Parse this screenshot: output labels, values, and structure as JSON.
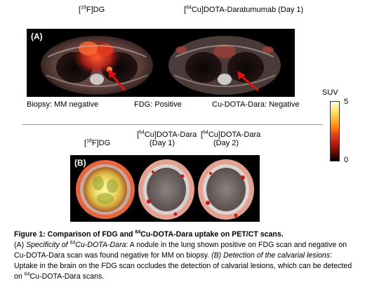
{
  "top_labels": {
    "fdg_title_iso": "18",
    "fdg_title_rest": "F]DG",
    "dara_title_iso": "64",
    "dara_title_rest": "Cu]DOTA-Daratumumab (Day 1)",
    "panel_a": "(A)",
    "biopsy_label": "Biopsy: MM negative",
    "fdg_result": "FDG: Positive",
    "cudara_result": "Cu-DOTA-Dara: Negative"
  },
  "colorbar": {
    "title": "SUV",
    "max_label": "5",
    "min_label": "0",
    "max_value": 5,
    "min_value": 0
  },
  "bottom_labels": {
    "fdg_iso": "18",
    "fdg_rest": "F]DG",
    "dara1_iso": "64",
    "dara1_rest": "Cu]DOTA-Dara",
    "dara1_day": "(Day 1)",
    "dara2_iso": "64",
    "dara2_rest": "Cu]DOTA-Dara",
    "dara2_day": "(Day 2)",
    "panel_b": "(B)"
  },
  "caption": {
    "title_pre": "Figure 1: Comparison of FDG and ",
    "title_iso": "64",
    "title_post": "Cu-DOTA-Dara uptake on PET/CT scans.",
    "a_label": "(A) ",
    "a_italic_pre": "Specificity of ",
    "a_italic_iso": "64",
    "a_italic_post": "Cu-DOTA-Dara",
    "a_text": ": A nodule in the lung shown positive on FDG scan and negative on Cu-DOTA-Dara scan was found negative for MM on biopsy. ",
    "b_italic": "(B) Detection of the calvarial lesions",
    "b_text": ": Uptake in the brain on the FDG scan occludes the detection of calvarial lesions, which can be detected on ",
    "b_iso": "64",
    "b_tail": "Cu-DOTA-Dara scans."
  }
}
